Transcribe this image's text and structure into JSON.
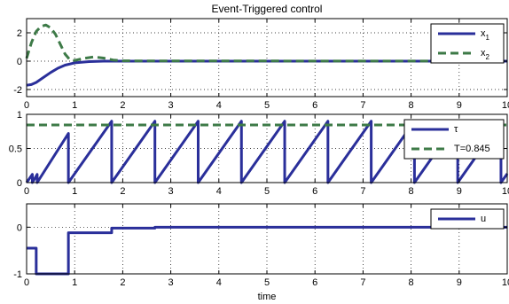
{
  "figure": {
    "title": "Event-Triggered control",
    "xlabel": "time"
  },
  "colors": {
    "blue": "#2a2f9a",
    "green": "#3d7a47",
    "grid": "#000000"
  },
  "chart_data": [
    {
      "type": "line",
      "title": "Event-Triggered control",
      "xlim": [
        0,
        10
      ],
      "ylim": [
        -2.5,
        3
      ],
      "xticks": [
        0,
        1,
        2,
        3,
        4,
        5,
        6,
        7,
        8,
        9,
        10
      ],
      "yticks": [
        -2,
        0,
        2
      ],
      "grid": true,
      "legend_position": "top-right",
      "series": [
        {
          "name": "x",
          "sub": "1",
          "color": "#2a2f9a",
          "dash": "solid",
          "x": [
            0,
            0.1,
            0.2,
            0.35,
            0.5,
            0.65,
            0.8,
            1.0,
            1.3,
            1.6,
            2.0,
            3.0,
            10.0
          ],
          "y": [
            -1.7,
            -1.65,
            -1.5,
            -1.15,
            -0.8,
            -0.5,
            -0.28,
            -0.12,
            -0.03,
            0.0,
            0.0,
            0.0,
            0.0
          ]
        },
        {
          "name": "x",
          "sub": "2",
          "color": "#3d7a47",
          "dash": "dashed",
          "x": [
            0,
            0.1,
            0.2,
            0.3,
            0.4,
            0.5,
            0.6,
            0.7,
            0.8,
            0.9,
            1.0,
            1.2,
            1.4,
            1.6,
            1.8,
            2.0,
            10.0
          ],
          "y": [
            0.2,
            1.3,
            2.1,
            2.45,
            2.55,
            2.35,
            1.9,
            1.2,
            0.5,
            0.1,
            0.05,
            0.2,
            0.3,
            0.22,
            0.08,
            0.02,
            0.0
          ]
        }
      ]
    },
    {
      "type": "line",
      "xlim": [
        0,
        10
      ],
      "ylim": [
        0,
        1
      ],
      "xticks": [
        0,
        1,
        2,
        3,
        4,
        5,
        6,
        7,
        8,
        9,
        10
      ],
      "yticks": [
        0,
        0.5,
        1
      ],
      "grid": true,
      "legend_position": "top-right",
      "series": [
        {
          "name": "τ",
          "color": "#2a2f9a",
          "dash": "solid",
          "x": [
            0,
            0.12,
            0.12,
            0.22,
            0.22,
            0.87,
            0.87,
            1.77,
            1.77,
            2.67,
            2.67,
            3.57,
            3.57,
            4.47,
            4.47,
            5.37,
            5.37,
            6.27,
            6.27,
            7.17,
            7.17,
            8.07,
            8.07,
            8.97,
            8.97,
            9.87,
            9.87,
            10.0
          ],
          "y": [
            0,
            0.12,
            0,
            0.12,
            0,
            0.72,
            0,
            0.9,
            0,
            0.9,
            0,
            0.9,
            0,
            0.9,
            0,
            0.9,
            0,
            0.9,
            0,
            0.9,
            0,
            0.9,
            0,
            0.9,
            0,
            0.9,
            0,
            0.13
          ]
        },
        {
          "name": "T=0.845",
          "color": "#3d7a47",
          "dash": "dashed",
          "x": [
            0,
            10
          ],
          "y": [
            0.845,
            0.845
          ]
        }
      ]
    },
    {
      "type": "line",
      "xlim": [
        0,
        10
      ],
      "ylim": [
        -1,
        0.5
      ],
      "xticks": [
        0,
        1,
        2,
        3,
        4,
        5,
        6,
        7,
        8,
        9,
        10
      ],
      "yticks": [
        -1,
        0
      ],
      "grid": true,
      "legend_position": "top-right",
      "series": [
        {
          "name": "u",
          "color": "#2a2f9a",
          "dash": "solid",
          "x": [
            0,
            0.2,
            0.2,
            0.87,
            0.87,
            1.77,
            1.77,
            2.67,
            2.67,
            10.0
          ],
          "y": [
            -0.45,
            -0.45,
            -1.0,
            -1.0,
            -0.12,
            -0.12,
            -0.02,
            -0.02,
            0.0,
            0.0
          ]
        }
      ]
    }
  ]
}
